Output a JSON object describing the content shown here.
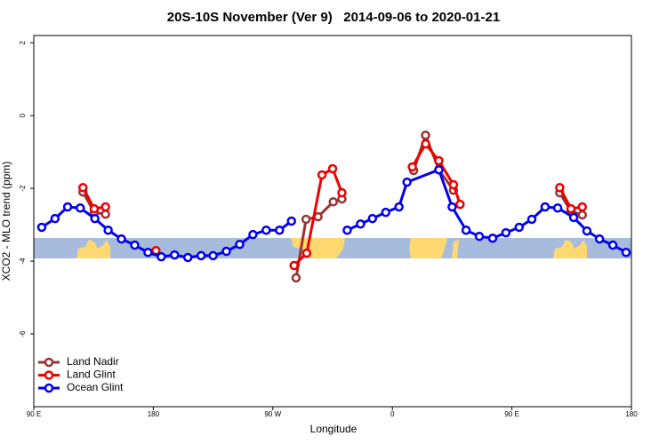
{
  "chart_data": {
    "type": "line",
    "title": "20S-10S November (Ver 9)   2014-09-06 to 2020-01-21",
    "xlabel": "Longitude",
    "ylabel": "XCO2 - MLO trend (ppm)",
    "xlim": [
      90,
      540
    ],
    "ylim": [
      -8.0,
      2.2
    ],
    "xticks": [
      {
        "value": 90,
        "label": "90 E"
      },
      180,
      {
        "value": 270,
        "label": "90 W"
      },
      {
        "value": 360,
        "label": "0"
      },
      {
        "value": 450,
        "label": "90 E"
      },
      {
        "value": 540,
        "label": "180"
      }
    ],
    "yticks": [
      2,
      0,
      -2,
      -4,
      -6
    ],
    "legend": "bottom-left",
    "series": [
      {
        "name": "Land Nadir",
        "color": "#993333",
        "x": [
          127,
          135.5,
          144,
          null,
          287.5,
          295,
          304,
          315.5,
          322,
          null,
          376,
          385,
          395,
          406,
          null,
          486,
          494.5,
          503
        ],
        "values": [
          -2.1,
          -2.66,
          -2.71,
          null,
          -4.46,
          -2.85,
          -2.78,
          -2.37,
          -2.29,
          null,
          -1.51,
          -0.54,
          -1.49,
          -2.05,
          null,
          -2.12,
          -2.63,
          -2.73
        ]
      },
      {
        "name": "Land Glint",
        "color": "#ee0000",
        "x": [
          127,
          135.5,
          144,
          null,
          182,
          null,
          286,
          295.5,
          307,
          315,
          322,
          null,
          375,
          385,
          395,
          406,
          411,
          null,
          486,
          494.5,
          503
        ],
        "values": [
          -1.98,
          -2.56,
          -2.51,
          null,
          -3.71,
          null,
          -4.12,
          -3.78,
          -1.63,
          -1.46,
          -2.12,
          null,
          -1.41,
          -0.78,
          -1.24,
          -1.9,
          -2.44,
          null,
          -1.98,
          -2.56,
          -2.51
        ]
      },
      {
        "name": "Ocean Glint",
        "color": "#0000ee",
        "x": [
          96,
          106,
          115.5,
          125,
          136,
          146,
          156,
          166,
          176,
          186,
          196,
          206,
          216,
          225,
          235,
          245,
          255,
          265,
          275,
          284,
          null,
          326,
          336,
          345,
          355,
          365,
          371,
          395,
          405,
          415.5,
          425.5,
          435.5,
          445.5,
          455.5,
          465,
          475,
          484.5,
          496.5,
          506.5,
          516,
          526,
          536
        ],
        "values": [
          -3.07,
          -2.83,
          -2.51,
          -2.54,
          -2.83,
          -3.15,
          -3.39,
          -3.56,
          -3.76,
          -3.88,
          -3.83,
          -3.9,
          -3.85,
          -3.85,
          -3.73,
          -3.54,
          -3.27,
          -3.15,
          -3.15,
          -2.9,
          null,
          -3.15,
          -2.98,
          -2.83,
          -2.66,
          -2.51,
          -1.83,
          -1.49,
          -2.51,
          -3.15,
          -3.32,
          -3.37,
          -3.22,
          -3.07,
          -2.85,
          -2.51,
          -2.54,
          -2.8,
          -3.17,
          -3.39,
          -3.56,
          -3.76
        ]
      }
    ]
  }
}
